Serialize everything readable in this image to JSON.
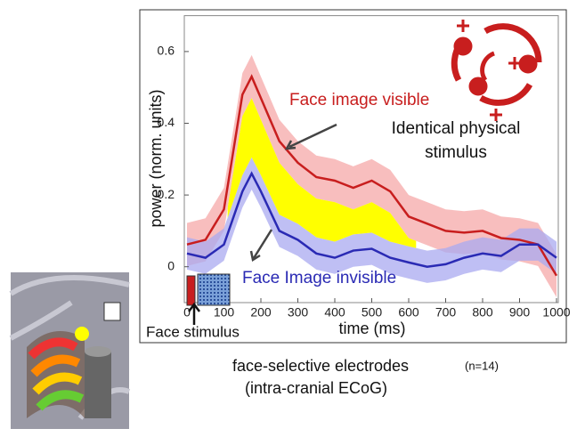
{
  "chart_data": {
    "type": "line",
    "x_label": "time (ms)",
    "y_label": "power (norm. units)",
    "x": [
      0,
      50,
      100,
      150,
      175,
      200,
      250,
      300,
      350,
      400,
      450,
      500,
      550,
      600,
      650,
      700,
      750,
      800,
      850,
      900,
      950,
      1000
    ],
    "series": [
      {
        "name": "Face image visible",
        "color": "#c81e1e",
        "band_color": "#f5a8a8",
        "spread": 0.06,
        "values": [
          0.062,
          0.075,
          0.16,
          0.48,
          0.53,
          0.47,
          0.35,
          0.29,
          0.25,
          0.24,
          0.22,
          0.24,
          0.21,
          0.14,
          0.12,
          0.1,
          0.095,
          0.1,
          0.08,
          0.075,
          0.062,
          -0.025
        ]
      },
      {
        "name": "Face Image invisible",
        "color": "#2a2ab4",
        "band_color": "#aaaaf0",
        "spread": 0.045,
        "values": [
          0.037,
          0.025,
          0.062,
          0.21,
          0.26,
          0.21,
          0.1,
          0.075,
          0.037,
          0.025,
          0.045,
          0.05,
          0.025,
          0.012,
          0,
          0.007,
          0.025,
          0.037,
          0.03,
          0.062,
          0.062,
          0.025
        ]
      }
    ],
    "significant_range": [
      110,
      620
    ],
    "significant_color": "#ffff00",
    "xlim": [
      0,
      1000
    ],
    "xticks": [
      0,
      100,
      200,
      300,
      400,
      500,
      600,
      700,
      800,
      900,
      1000
    ],
    "ylim": [
      -0.1,
      0.7
    ],
    "yticks": [
      0,
      0.2,
      0.4,
      0.6
    ],
    "annotations": {
      "stimulus_note": [
        "Identical physical",
        "stimulus"
      ],
      "stimulus_label": "Face stimulus"
    },
    "caption": {
      "line1": "face-selective electrodes",
      "n": "(n=14)",
      "line2": "(intra-cranial ECoG)"
    }
  }
}
